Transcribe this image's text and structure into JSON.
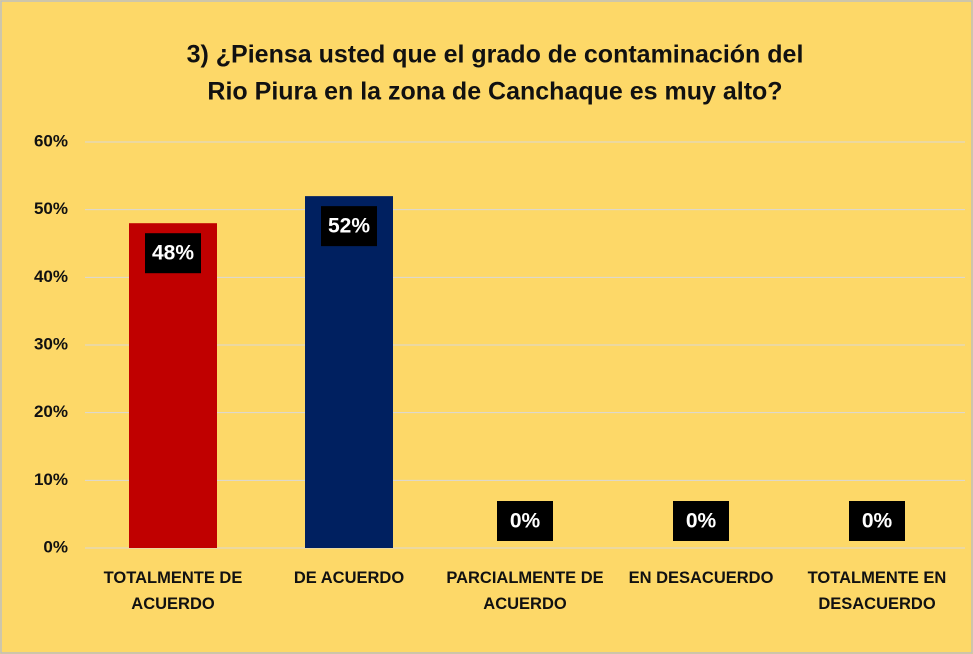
{
  "chart_data": {
    "type": "bar",
    "title": [
      "3)    ¿Piensa usted que el grado de contaminación del",
      "Rio Piura en la zona de Canchaque es muy alto?"
    ],
    "categories": [
      "TOTALMENTE DE ACUERDO",
      "DE ACUERDO",
      "PARCIALMENTE DE ACUERDO",
      "EN DESACUERDO",
      "TOTALMENTE EN DESACUERDO"
    ],
    "values": [
      48,
      52,
      0,
      0,
      0
    ],
    "value_labels": [
      "48%",
      "52%",
      "0%",
      "0%",
      "0%"
    ],
    "colors": [
      "#c00000",
      "#002060",
      "#4472c4",
      "#4472c4",
      "#4472c4"
    ],
    "ylim": [
      0,
      60
    ],
    "yticks": [
      {
        "value": 0,
        "label": "0%"
      },
      {
        "value": 10,
        "label": "10%"
      },
      {
        "value": 20,
        "label": "20%"
      },
      {
        "value": 30,
        "label": "30%"
      },
      {
        "value": 40,
        "label": "40%"
      },
      {
        "value": 50,
        "label": "50%"
      },
      {
        "value": 60,
        "label": "60%"
      }
    ],
    "grid": true
  }
}
